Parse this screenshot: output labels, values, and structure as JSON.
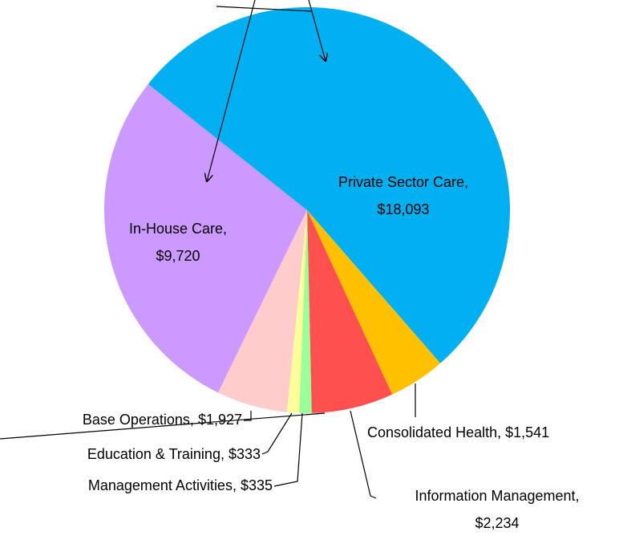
{
  "chart_data": {
    "type": "pie",
    "categories": [
      "Private Sector Care,",
      "Consolidated Health,",
      "Information Management,",
      "Management Activities,",
      "Education & Training,",
      "Base Operations,",
      "In-House Care,"
    ],
    "values": [
      18093,
      1541,
      2234,
      335,
      333,
      1927,
      9720
    ],
    "value_labels": [
      "$18,093",
      "$1,541",
      "$2,234",
      "$335",
      "$333",
      "$1,927",
      "$9,720"
    ],
    "colors": [
      "#00B0F0",
      "#FFC000",
      "#FF5050",
      "#99FF99",
      "#FFFF99",
      "#FFCCCC",
      "#CC99FF"
    ]
  }
}
